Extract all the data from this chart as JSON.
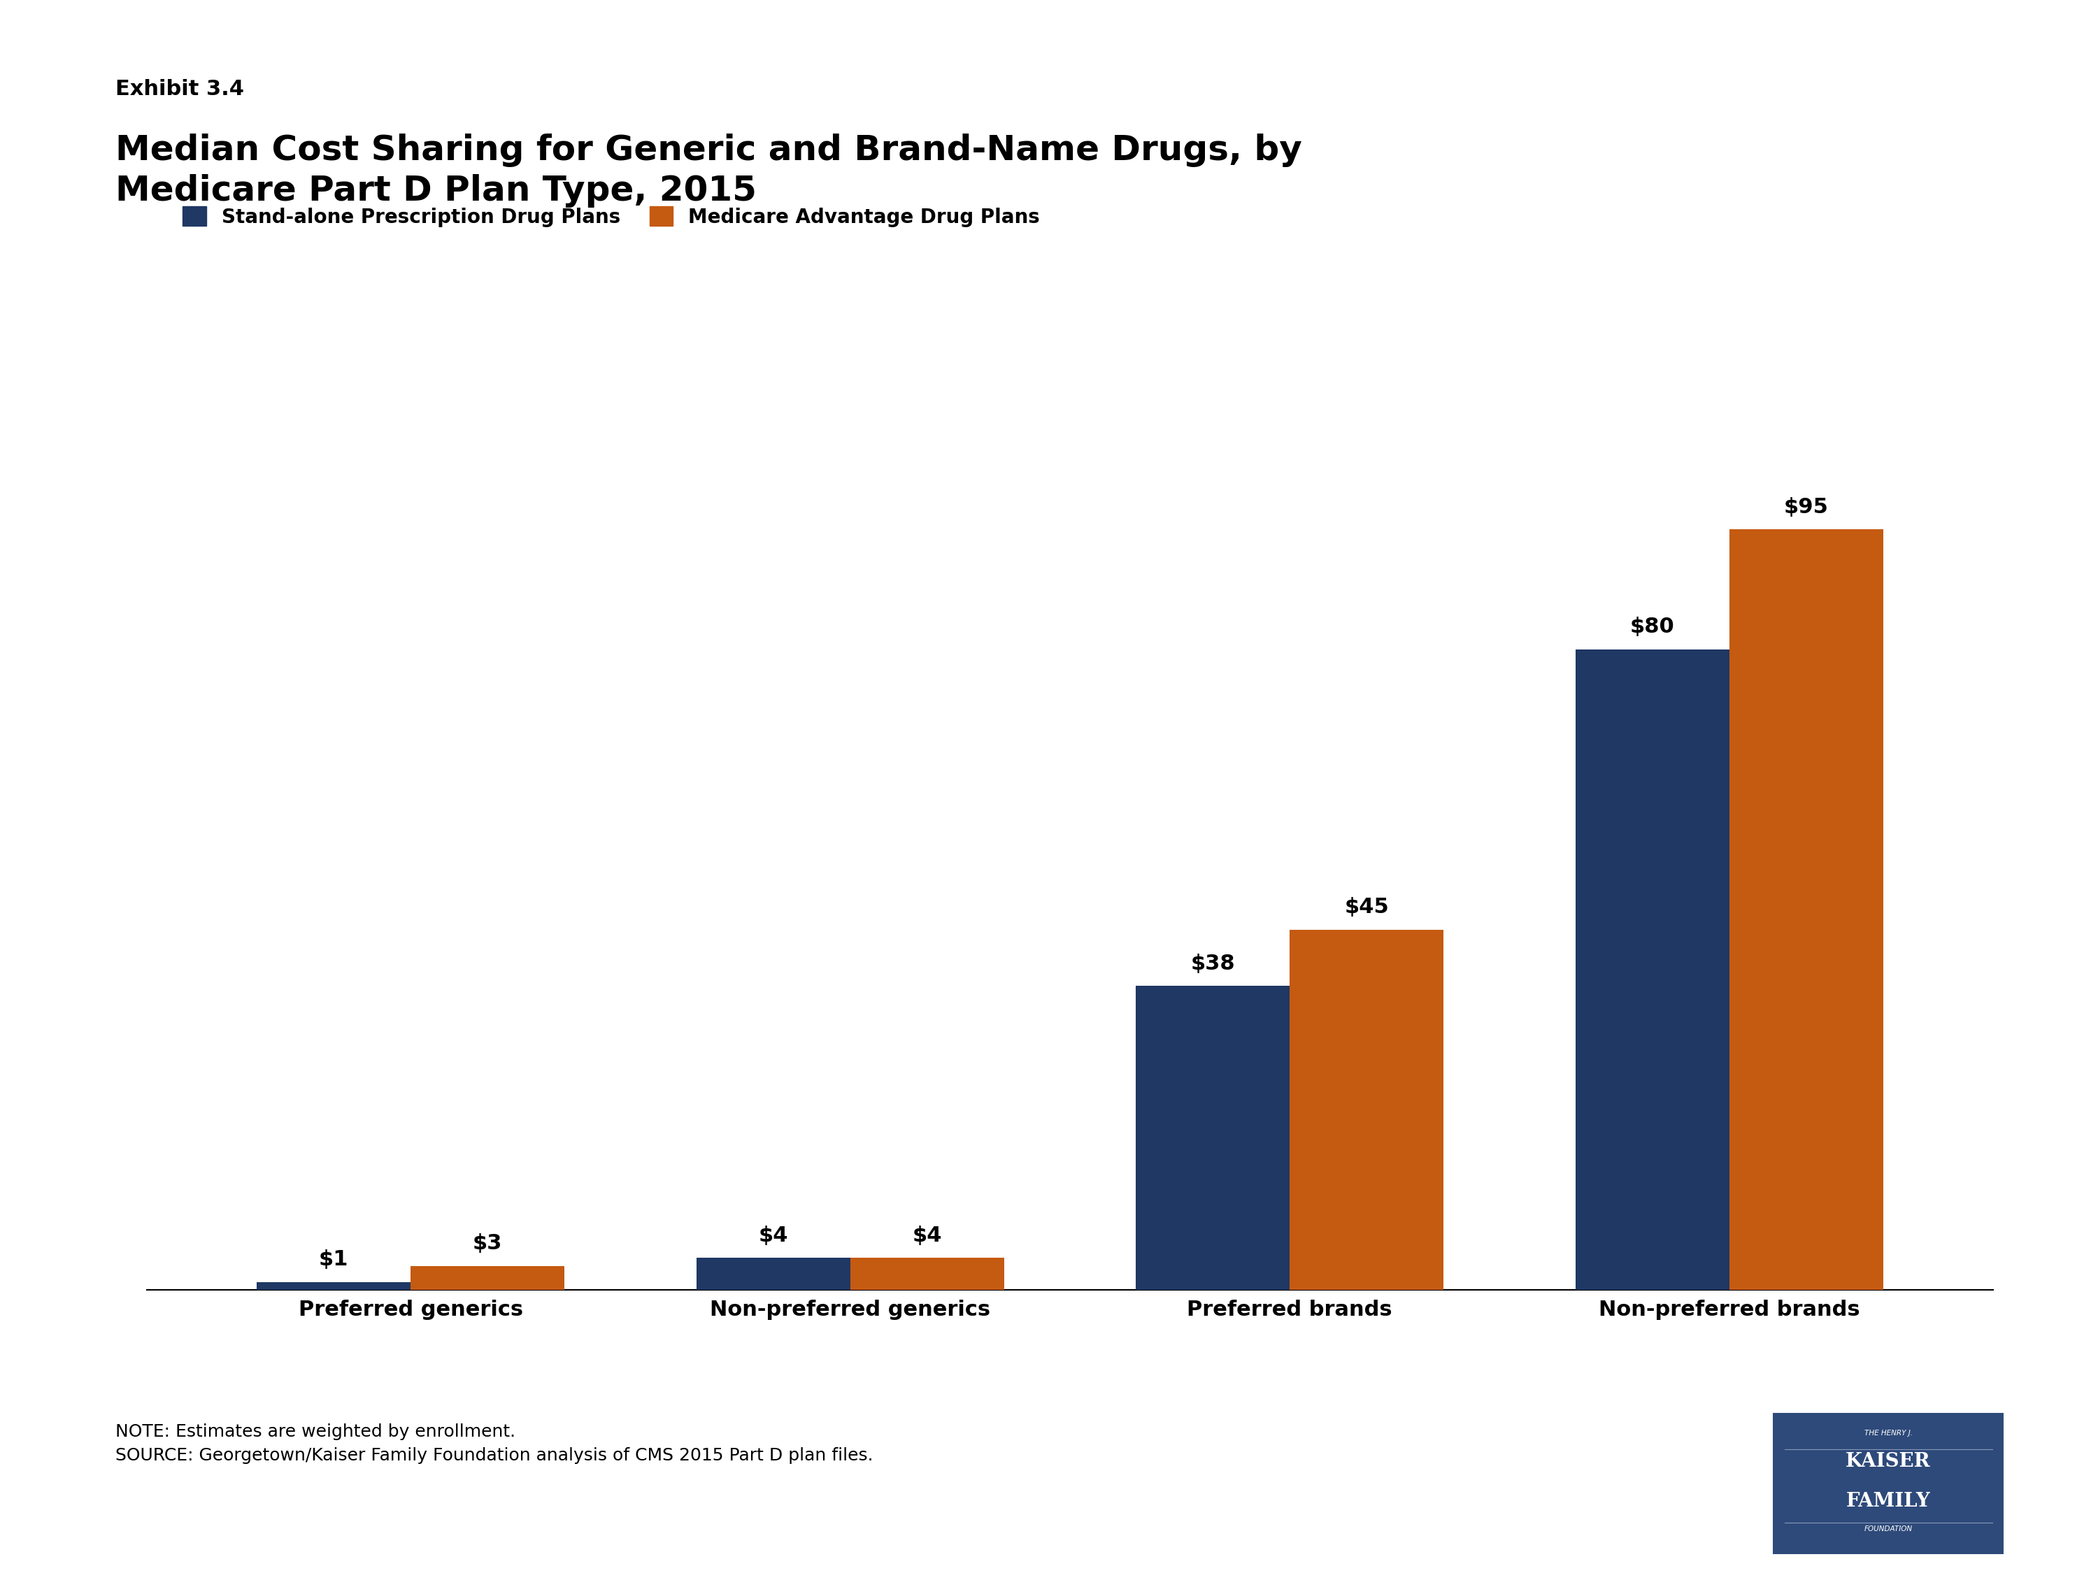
{
  "exhibit_label": "Exhibit 3.4",
  "title_line1": "Median Cost Sharing for Generic and Brand-Name Drugs, by",
  "title_line2": "Medicare Part D Plan Type, 2015",
  "categories": [
    "Preferred generics",
    "Non-preferred generics",
    "Preferred brands",
    "Non-preferred brands"
  ],
  "series": [
    {
      "name": "Stand-alone Prescription Drug Plans",
      "color": "#1f3864",
      "values": [
        1,
        4,
        38,
        80
      ]
    },
    {
      "name": "Medicare Advantage Drug Plans",
      "color": "#c55a11",
      "values": [
        3,
        4,
        45,
        95
      ]
    }
  ],
  "value_labels": [
    [
      "$1",
      "$3"
    ],
    [
      "$4",
      "$4"
    ],
    [
      "$38",
      "$45"
    ],
    [
      "$80",
      "$95"
    ]
  ],
  "ylim": [
    0,
    110
  ],
  "note_line1": "NOTE: Estimates are weighted by enrollment.",
  "note_line2": "SOURCE: Georgetown/Kaiser Family Foundation analysis of CMS 2015 Part D plan files.",
  "background_color": "#ffffff",
  "bar_width": 0.35,
  "title_fontsize": 36,
  "exhibit_fontsize": 22,
  "legend_fontsize": 20,
  "axis_label_fontsize": 22,
  "value_label_fontsize": 22,
  "note_fontsize": 18,
  "logo_color": "#2e4a7a",
  "logo_line_color": "#8899bb"
}
